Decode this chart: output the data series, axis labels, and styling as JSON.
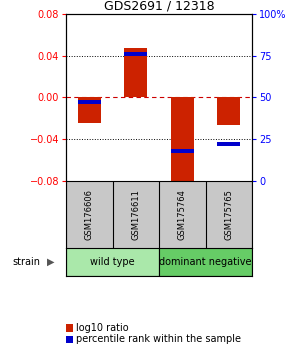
{
  "title": "GDS2691 / 12318",
  "samples": [
    "GSM176606",
    "GSM176611",
    "GSM175764",
    "GSM175765"
  ],
  "log10_ratio": [
    -0.025,
    0.047,
    -0.085,
    -0.027
  ],
  "percentile_rank": [
    47,
    76,
    18,
    22
  ],
  "ylim_left": [
    -0.08,
    0.08
  ],
  "ylim_right": [
    0,
    100
  ],
  "yticks_left": [
    -0.08,
    -0.04,
    0,
    0.04,
    0.08
  ],
  "yticks_right": [
    0,
    25,
    50,
    75,
    100
  ],
  "ytick_labels_right": [
    "0",
    "25",
    "50",
    "75",
    "100%"
  ],
  "groups": [
    {
      "label": "wild type",
      "samples": [
        0,
        1
      ]
    },
    {
      "label": "dominant negative",
      "samples": [
        2,
        3
      ]
    }
  ],
  "bar_color_red": "#cc2200",
  "bar_color_blue": "#0000cc",
  "bar_width": 0.5,
  "grid_color": "#000000",
  "zero_line_color": "#cc0000",
  "background_color": "#ffffff",
  "label_area_color": "#c8c8c8",
  "group_wt_color": "#aae8aa",
  "group_dn_color": "#66cc66",
  "strain_label": "strain",
  "legend_red": "log10 ratio",
  "legend_blue": "percentile rank within the sample"
}
